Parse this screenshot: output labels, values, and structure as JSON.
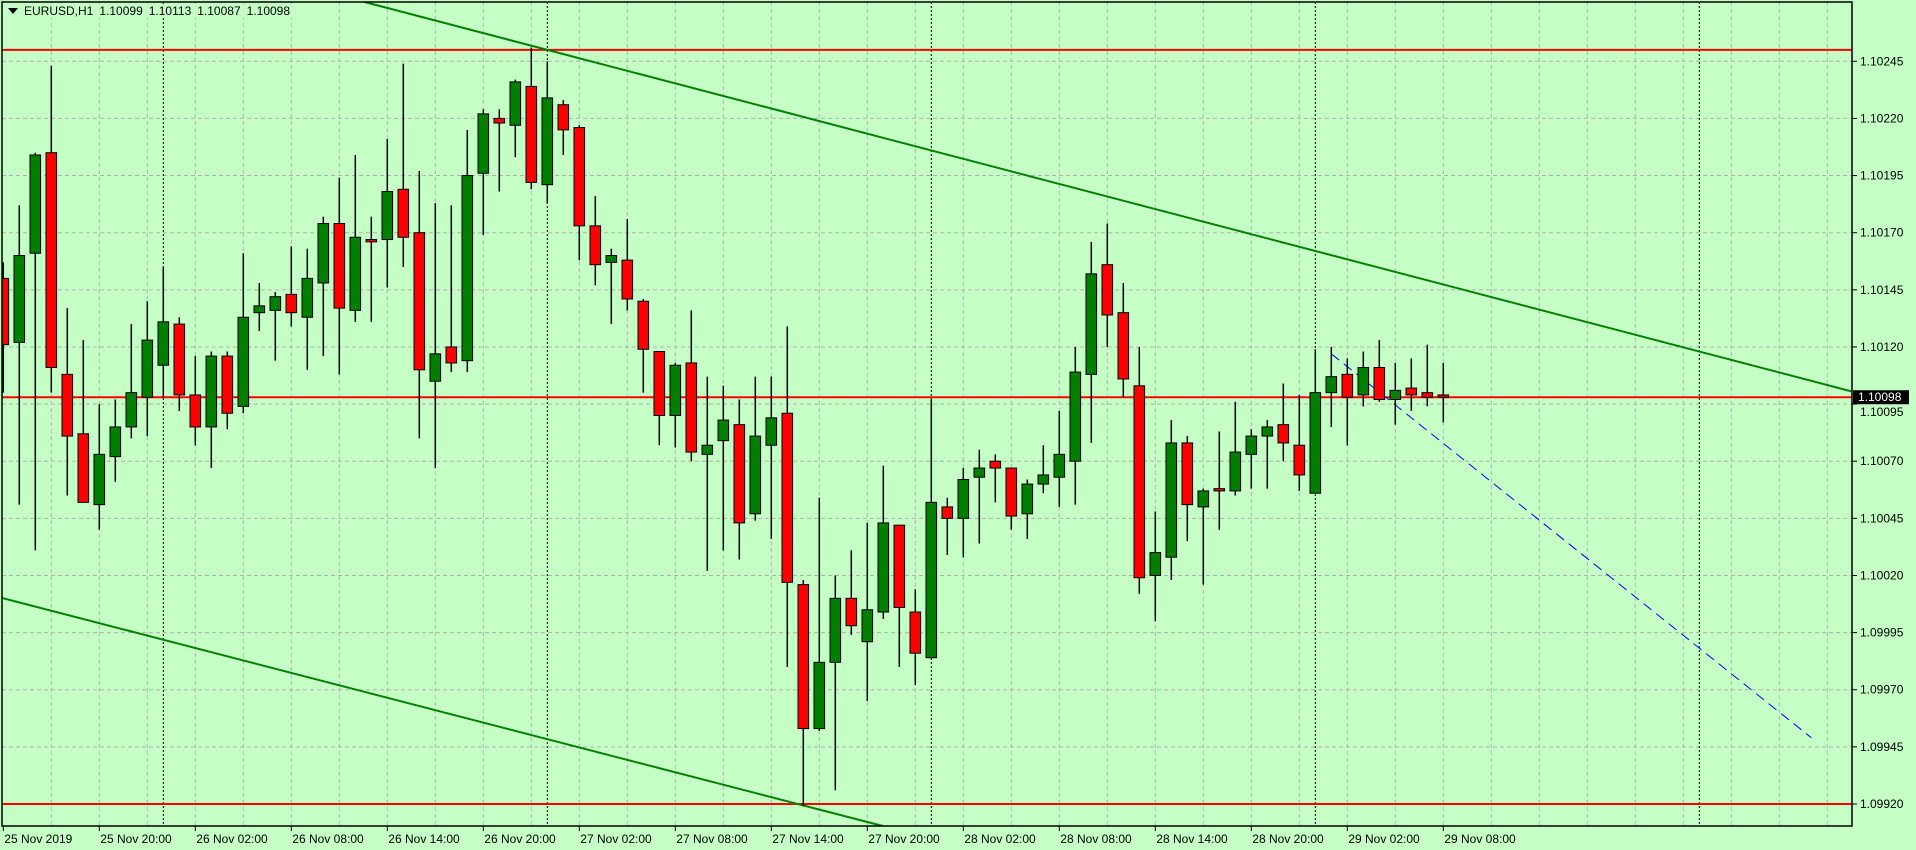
{
  "header": {
    "symbol_timeframe": "EURUSD,H1",
    "open": "1.10099",
    "high": "1.10113",
    "low": "1.10087",
    "close": "1.10098",
    "menu_icon": "triangle-down-icon"
  },
  "colors": {
    "background": "#c5ffc5",
    "bull": "#008000",
    "bear": "#ff0000",
    "grid": "#b0b0b0",
    "level_lines": "#ff0000",
    "channel": "#008000",
    "projection": "#0000ff",
    "price_tag_bg": "#000000"
  },
  "chart_data": {
    "type": "candlestick",
    "title": "EURUSD,H1",
    "grid": true,
    "candle_fields": [
      "time",
      "open",
      "high",
      "low",
      "close"
    ],
    "candles": [
      [
        "25 Nov 14:00",
        1.1015,
        1.10157,
        1.101,
        1.10121
      ],
      [
        "25 Nov 15:00",
        1.10122,
        1.10182,
        1.10051,
        1.1016
      ],
      [
        "25 Nov 16:00",
        1.10161,
        1.10205,
        1.10031,
        1.10204
      ],
      [
        "25 Nov 17:00",
        1.10205,
        1.10243,
        1.101,
        1.10111
      ],
      [
        "25 Nov 18:00",
        1.10108,
        1.10137,
        1.10055,
        1.10081
      ],
      [
        "25 Nov 19:00",
        1.10082,
        1.10123,
        1.10052,
        1.10052
      ],
      [
        "25 Nov 20:00",
        1.10051,
        1.10095,
        1.1004,
        1.10073
      ],
      [
        "25 Nov 21:00",
        1.10072,
        1.10097,
        1.10061,
        1.10085
      ],
      [
        "25 Nov 22:00",
        1.10085,
        1.1013,
        1.1008,
        1.101
      ],
      [
        "25 Nov 23:00",
        1.10098,
        1.1014,
        1.10081,
        1.10123
      ],
      [
        "26 Nov 00:00",
        1.10112,
        1.10155,
        1.10098,
        1.10131
      ],
      [
        "26 Nov 01:00",
        1.1013,
        1.10133,
        1.10092,
        1.10099
      ],
      [
        "26 Nov 02:00",
        1.10099,
        1.10116,
        1.10077,
        1.10085
      ],
      [
        "26 Nov 03:00",
        1.10085,
        1.10118,
        1.10067,
        1.10116
      ],
      [
        "26 Nov 04:00",
        1.10116,
        1.10118,
        1.10084,
        1.10091
      ],
      [
        "26 Nov 05:00",
        1.10094,
        1.10161,
        1.10091,
        1.10133
      ],
      [
        "26 Nov 06:00",
        1.10135,
        1.10148,
        1.10127,
        1.10138
      ],
      [
        "26 Nov 07:00",
        1.10136,
        1.10144,
        1.10114,
        1.10142
      ],
      [
        "26 Nov 08:00",
        1.10143,
        1.10164,
        1.10129,
        1.10135
      ],
      [
        "26 Nov 09:00",
        1.10133,
        1.10163,
        1.1011,
        1.1015
      ],
      [
        "26 Nov 10:00",
        1.10148,
        1.10177,
        1.10116,
        1.10174
      ],
      [
        "26 Nov 11:00",
        1.10174,
        1.10194,
        1.10108,
        1.10137
      ],
      [
        "26 Nov 12:00",
        1.10136,
        1.10204,
        1.10131,
        1.10168
      ],
      [
        "26 Nov 13:00",
        1.10167,
        1.10177,
        1.10131,
        1.10166
      ],
      [
        "26 Nov 14:00",
        1.10167,
        1.10211,
        1.10146,
        1.10188
      ],
      [
        "26 Nov 15:00",
        1.10189,
        1.10244,
        1.10155,
        1.10168
      ],
      [
        "26 Nov 16:00",
        1.1017,
        1.10197,
        1.1008,
        1.1011
      ],
      [
        "26 Nov 17:00",
        1.10105,
        1.10183,
        1.10067,
        1.10117
      ],
      [
        "26 Nov 18:00",
        1.1012,
        1.10182,
        1.10109,
        1.10113
      ],
      [
        "26 Nov 19:00",
        1.10114,
        1.10215,
        1.10109,
        1.10195
      ],
      [
        "26 Nov 20:00",
        1.10196,
        1.10224,
        1.10169,
        1.10222
      ],
      [
        "26 Nov 21:00",
        1.1022,
        1.10224,
        1.10188,
        1.10218
      ],
      [
        "26 Nov 22:00",
        1.10217,
        1.10237,
        1.10203,
        1.10236
      ],
      [
        "26 Nov 23:00",
        1.10234,
        1.10251,
        1.10189,
        1.10192
      ],
      [
        "27 Nov 00:00",
        1.10191,
        1.10245,
        1.10183,
        1.10229
      ],
      [
        "27 Nov 01:00",
        1.10226,
        1.10228,
        1.10204,
        1.10215
      ],
      [
        "27 Nov 02:00",
        1.10216,
        1.10217,
        1.10158,
        1.10173
      ],
      [
        "27 Nov 03:00",
        1.10173,
        1.10186,
        1.10147,
        1.10156
      ],
      [
        "27 Nov 04:00",
        1.10157,
        1.10163,
        1.1013,
        1.1016
      ],
      [
        "27 Nov 05:00",
        1.10158,
        1.10176,
        1.10136,
        1.10141
      ],
      [
        "27 Nov 06:00",
        1.1014,
        1.10141,
        1.101,
        1.10119
      ],
      [
        "27 Nov 07:00",
        1.10118,
        1.10118,
        1.10077,
        1.1009
      ],
      [
        "27 Nov 08:00",
        1.1009,
        1.10113,
        1.10076,
        1.10112
      ],
      [
        "27 Nov 09:00",
        1.10113,
        1.10136,
        1.1007,
        1.10074
      ],
      [
        "27 Nov 10:00",
        1.10073,
        1.10107,
        1.10022,
        1.10077
      ],
      [
        "27 Nov 11:00",
        1.10079,
        1.10103,
        1.10031,
        1.10088
      ],
      [
        "27 Nov 12:00",
        1.10086,
        1.10097,
        1.10027,
        1.10043
      ],
      [
        "27 Nov 13:00",
        1.10047,
        1.10107,
        1.10044,
        1.10081
      ],
      [
        "27 Nov 14:00",
        1.10077,
        1.10107,
        1.10036,
        1.10089
      ],
      [
        "27 Nov 15:00",
        1.10091,
        1.10129,
        1.0998,
        1.10017
      ],
      [
        "27 Nov 16:00",
        1.10016,
        1.10018,
        1.09919,
        1.09953
      ],
      [
        "27 Nov 17:00",
        1.09953,
        1.10054,
        1.09952,
        1.09982
      ],
      [
        "27 Nov 18:00",
        1.09982,
        1.1002,
        1.09926,
        1.1001
      ],
      [
        "27 Nov 19:00",
        1.1001,
        1.10031,
        1.09994,
        1.09998
      ],
      [
        "27 Nov 20:00",
        1.09991,
        1.10043,
        1.09965,
        1.10005
      ],
      [
        "27 Nov 21:00",
        1.10004,
        1.10068,
        1.10001,
        1.10043
      ],
      [
        "27 Nov 22:00",
        1.10042,
        1.10042,
        1.0998,
        1.10006
      ],
      [
        "27 Nov 23:00",
        1.10004,
        1.10014,
        1.09972,
        1.09986
      ],
      [
        "28 Nov 00:00",
        1.09984,
        1.10097,
        1.09984,
        1.10052
      ],
      [
        "28 Nov 01:00",
        1.1005,
        1.10054,
        1.10029,
        1.10045
      ],
      [
        "28 Nov 02:00",
        1.10045,
        1.10067,
        1.10028,
        1.10062
      ],
      [
        "28 Nov 03:00",
        1.10063,
        1.10075,
        1.10034,
        1.10067
      ],
      [
        "28 Nov 04:00",
        1.1007,
        1.10073,
        1.10052,
        1.10067
      ],
      [
        "28 Nov 05:00",
        1.10067,
        1.10067,
        1.1004,
        1.10046
      ],
      [
        "28 Nov 06:00",
        1.10047,
        1.10062,
        1.10036,
        1.1006
      ],
      [
        "28 Nov 07:00",
        1.1006,
        1.10077,
        1.10056,
        1.10064
      ],
      [
        "28 Nov 08:00",
        1.10063,
        1.10092,
        1.1005,
        1.10073
      ],
      [
        "28 Nov 09:00",
        1.1007,
        1.1012,
        1.10051,
        1.10109
      ],
      [
        "28 Nov 10:00",
        1.10108,
        1.10166,
        1.10078,
        1.10152
      ],
      [
        "28 Nov 11:00",
        1.10156,
        1.10174,
        1.1012,
        1.10134
      ],
      [
        "28 Nov 12:00",
        1.10135,
        1.10148,
        1.10098,
        1.10106
      ],
      [
        "28 Nov 13:00",
        1.10103,
        1.1012,
        1.10012,
        1.10019
      ],
      [
        "28 Nov 14:00",
        1.1002,
        1.10048,
        1.1,
        1.1003
      ],
      [
        "28 Nov 15:00",
        1.10028,
        1.10088,
        1.10018,
        1.10078
      ],
      [
        "28 Nov 16:00",
        1.10078,
        1.10081,
        1.10035,
        1.10051
      ],
      [
        "28 Nov 17:00",
        1.1005,
        1.10058,
        1.10016,
        1.10057
      ],
      [
        "28 Nov 18:00",
        1.10058,
        1.10083,
        1.1004,
        1.10057
      ],
      [
        "28 Nov 19:00",
        1.10057,
        1.10096,
        1.10055,
        1.10074
      ],
      [
        "28 Nov 20:00",
        1.10073,
        1.10084,
        1.10058,
        1.10081
      ],
      [
        "28 Nov 21:00",
        1.10081,
        1.10088,
        1.10058,
        1.10085
      ],
      [
        "28 Nov 22:00",
        1.10086,
        1.10104,
        1.1007,
        1.10078
      ],
      [
        "28 Nov 23:00",
        1.10077,
        1.10099,
        1.10057,
        1.10064
      ],
      [
        "29 Nov 00:00",
        1.10056,
        1.10119,
        1.10056,
        1.101
      ],
      [
        "29 Nov 01:00",
        1.101,
        1.1012,
        1.10085,
        1.10107
      ],
      [
        "29 Nov 02:00",
        1.10108,
        1.10115,
        1.10077,
        1.10098
      ],
      [
        "29 Nov 03:00",
        1.10099,
        1.10118,
        1.10094,
        1.10111
      ],
      [
        "29 Nov 04:00",
        1.10111,
        1.10123,
        1.10096,
        1.10097
      ],
      [
        "29 Nov 05:00",
        1.10097,
        1.10113,
        1.10086,
        1.10101
      ],
      [
        "29 Nov 06:00",
        1.10102,
        1.10115,
        1.10092,
        1.10099
      ],
      [
        "29 Nov 07:00",
        1.101,
        1.10121,
        1.10094,
        1.10098
      ],
      [
        "29 Nov 08:00",
        1.10099,
        1.10113,
        1.10087,
        1.10098
      ]
    ],
    "ylim": [
      1.0991,
      1.10275
    ],
    "y_ticks": [
      "1.10245",
      "1.10220",
      "1.10195",
      "1.10170",
      "1.10145",
      "1.10120",
      "1.10095",
      "1.10070",
      "1.10045",
      "1.10020",
      "1.09995",
      "1.09970",
      "1.09945",
      "1.09920"
    ],
    "x_tick_labels": [
      [
        "25 Nov 14:00",
        "25 Nov 2019"
      ],
      [
        "25 Nov 20:00",
        "25 Nov 20:00"
      ],
      [
        "26 Nov 02:00",
        "26 Nov 02:00"
      ],
      [
        "26 Nov 08:00",
        "26 Nov 08:00"
      ],
      [
        "26 Nov 14:00",
        "26 Nov 14:00"
      ],
      [
        "26 Nov 20:00",
        "26 Nov 20:00"
      ],
      [
        "27 Nov 02:00",
        "27 Nov 02:00"
      ],
      [
        "27 Nov 08:00",
        "27 Nov 08:00"
      ],
      [
        "27 Nov 14:00",
        "27 Nov 14:00"
      ],
      [
        "27 Nov 20:00",
        "27 Nov 20:00"
      ],
      [
        "28 Nov 02:00",
        "28 Nov 02:00"
      ],
      [
        "28 Nov 08:00",
        "28 Nov 08:00"
      ],
      [
        "28 Nov 14:00",
        "28 Nov 14:00"
      ],
      [
        "28 Nov 20:00",
        "28 Nov 20:00"
      ],
      [
        "29 Nov 02:00",
        "29 Nov 02:00"
      ],
      [
        "29 Nov 08:00",
        "29 Nov 08:00"
      ]
    ],
    "day_separators": [
      "26 Nov 00:00",
      "27 Nov 00:00",
      "28 Nov 00:00",
      "29 Nov 00:00",
      "30 Nov 00:00"
    ],
    "horizontal_levels": [
      1.1025,
      1.10098,
      1.0992
    ],
    "current_price": "1.10098",
    "trendlines": [
      {
        "id": "channel-upper",
        "points": [
          [
            "26 Nov 00:00",
            1.10294
          ],
          [
            "28 Nov 00:00",
            1.10206
          ]
        ],
        "ray": true,
        "style": "solid"
      },
      {
        "id": "channel-lower",
        "points": [
          [
            "25 Nov 14:00",
            1.1001
          ],
          [
            "27 Nov 14:00",
            1.09923
          ]
        ],
        "ray": true,
        "style": "solid"
      },
      {
        "id": "projection",
        "points": [
          [
            "29 Nov 01:00",
            1.10117
          ],
          [
            "30 Nov 07:00",
            1.09949
          ]
        ],
        "ray": false,
        "style": "dashed"
      }
    ]
  }
}
